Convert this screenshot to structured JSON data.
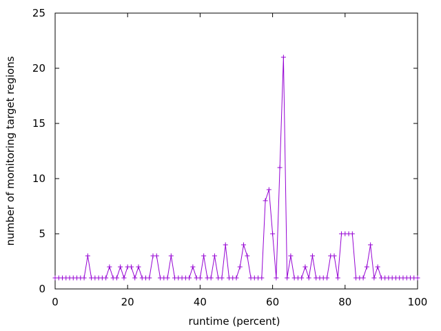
{
  "chart_data": {
    "type": "line",
    "xlabel": "runtime (percent)",
    "ylabel": "number of monitoring target regions",
    "xlim": [
      0,
      100
    ],
    "ylim": [
      0,
      25
    ],
    "xticks": [
      0,
      20,
      40,
      60,
      80,
      100
    ],
    "yticks": [
      0,
      5,
      10,
      15,
      20,
      25
    ],
    "grid": false,
    "legend": "none",
    "series": [
      {
        "color": "#9400d3",
        "marker": "plus",
        "x": [
          0,
          1,
          2,
          3,
          4,
          5,
          6,
          7,
          8,
          9,
          10,
          11,
          12,
          13,
          14,
          15,
          16,
          17,
          18,
          19,
          20,
          21,
          22,
          23,
          24,
          25,
          26,
          27,
          28,
          29,
          30,
          31,
          32,
          33,
          34,
          35,
          36,
          37,
          38,
          39,
          40,
          41,
          42,
          43,
          44,
          45,
          46,
          47,
          48,
          49,
          50,
          51,
          52,
          53,
          54,
          55,
          56,
          57,
          58,
          59,
          60,
          61,
          62,
          63,
          64,
          65,
          66,
          67,
          68,
          69,
          70,
          71,
          72,
          73,
          74,
          75,
          76,
          77,
          78,
          79,
          80,
          81,
          82,
          83,
          84,
          85,
          86,
          87,
          88,
          89,
          90,
          91,
          92,
          93,
          94,
          95,
          96,
          97,
          98,
          99,
          100
        ],
        "y": [
          1,
          1,
          1,
          1,
          1,
          1,
          1,
          1,
          1,
          3,
          1,
          1,
          1,
          1,
          1,
          2,
          1,
          1,
          2,
          1,
          2,
          2,
          1,
          2,
          1,
          1,
          1,
          3,
          3,
          1,
          1,
          1,
          3,
          1,
          1,
          1,
          1,
          1,
          2,
          1,
          1,
          3,
          1,
          1,
          3,
          1,
          1,
          4,
          1,
          1,
          1,
          2,
          4,
          3,
          1,
          1,
          1,
          1,
          8,
          9,
          5,
          1,
          11,
          21,
          1,
          3,
          1,
          1,
          1,
          2,
          1,
          3,
          1,
          1,
          1,
          1,
          3,
          3,
          1,
          5,
          5,
          5,
          5,
          1,
          1,
          1,
          2,
          4,
          1,
          2,
          1,
          1,
          1,
          1,
          1,
          1,
          1,
          1,
          1,
          1,
          1
        ]
      }
    ]
  }
}
